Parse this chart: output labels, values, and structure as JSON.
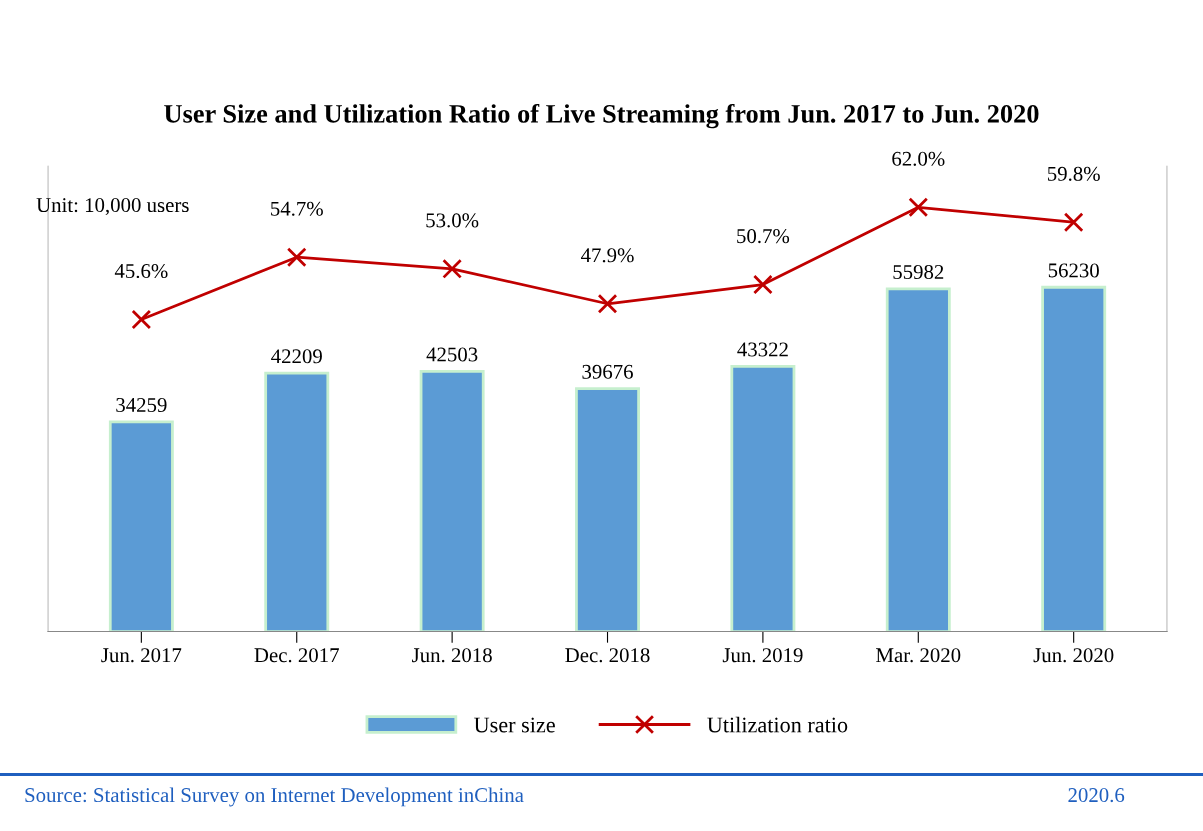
{
  "chart_data": {
    "type": "bar",
    "title": "User Size and Utilization Ratio of Live Streaming from Jun. 2017 to Jun. 2020",
    "categories": [
      "Jun. 2017",
      "Dec. 2017",
      "Jun. 2018",
      "Dec. 2018",
      "Jun. 2019",
      "Mar. 2020",
      "Jun. 2020"
    ],
    "series": [
      {
        "name": "User size",
        "color": "#5b9bd5",
        "values": [
          34259,
          42209,
          42503,
          39676,
          43322,
          55982,
          56230
        ]
      },
      {
        "name": "Utilization ratio",
        "type": "line",
        "axis": "y2",
        "color": "#c00000",
        "marker": "cross",
        "values": [
          45.6,
          54.7,
          53.0,
          47.9,
          50.7,
          62.0,
          59.8
        ],
        "value_labels": [
          "45.6%",
          "54.7%",
          "53.0%",
          "47.9%",
          "50.7%",
          "62.0%",
          "59.8%"
        ]
      }
    ],
    "ylim": [
      0,
      76000
    ],
    "y2lim": [
      0,
      68
    ],
    "data_labels": true,
    "tick_labels": "x",
    "grid": false,
    "legend": "bottom",
    "annotations": [
      "Unit: 10,000 users",
      "Source: Statistical Survey on Internet Development inChina",
      "2020.6"
    ]
  }
}
